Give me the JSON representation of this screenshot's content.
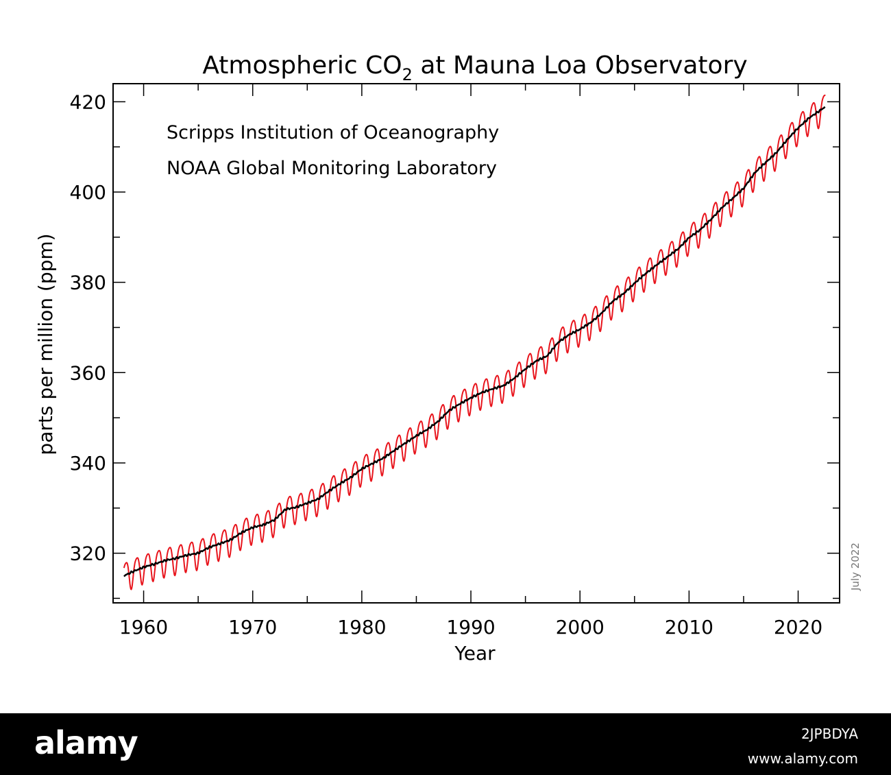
{
  "chart_data": {
    "type": "line",
    "title": "Atmospheric CO",
    "title_subscript": "2",
    "title_suffix": " at Mauna Loa Observatory",
    "xlabel": "Year",
    "ylabel": "parts per million (ppm)",
    "xlim": [
      1957.2,
      2023.8
    ],
    "ylim": [
      309,
      424
    ],
    "x_ticks": [
      1960,
      1970,
      1980,
      1990,
      2000,
      2010,
      2020
    ],
    "x_tick_labels": [
      "1960",
      "1970",
      "1980",
      "1990",
      "2000",
      "2010",
      "2020"
    ],
    "y_ticks": [
      320,
      340,
      360,
      380,
      400,
      420
    ],
    "y_tick_labels": [
      "320",
      "340",
      "360",
      "380",
      "400",
      "420"
    ],
    "grid": false,
    "annotations": [
      "Scripps Institution of Oceanography",
      "NOAA Global Monitoring Laboratory"
    ],
    "date_stamp": "July 2022",
    "colors": {
      "monthly": "#e8141c",
      "trend": "#000000"
    },
    "series": [
      {
        "key": "monthly",
        "x": [
          1958.2,
          1959,
          1960,
          1961,
          1962,
          1963,
          1964,
          1965,
          1966,
          1967,
          1968,
          1969,
          1970,
          1971,
          1972,
          1973,
          1974,
          1975,
          1976,
          1977,
          1978,
          1979,
          1980,
          1981,
          1982,
          1983,
          1984,
          1985,
          1986,
          1987,
          1988,
          1989,
          1990,
          1991,
          1992,
          1993,
          1994,
          1995,
          1996,
          1997,
          1998,
          1999,
          2000,
          2001,
          2002,
          2003,
          2004,
          2005,
          2006,
          2007,
          2008,
          2009,
          2010,
          2011,
          2012,
          2013,
          2014,
          2015,
          2016,
          2017,
          2018,
          2019,
          2020,
          2021,
          2022.5
        ],
        "y": [
          315.0,
          315.9,
          316.9,
          317.6,
          318.4,
          318.9,
          319.6,
          320.0,
          321.3,
          322.1,
          323.0,
          324.6,
          325.7,
          326.3,
          327.4,
          329.7,
          330.2,
          331.1,
          332.0,
          333.8,
          335.4,
          336.8,
          338.7,
          339.9,
          341.1,
          342.8,
          344.4,
          346.0,
          347.4,
          349.2,
          351.6,
          353.1,
          354.4,
          355.6,
          356.4,
          357.1,
          358.8,
          360.8,
          362.6,
          363.7,
          366.7,
          368.4,
          369.6,
          371.1,
          373.2,
          375.8,
          377.5,
          379.8,
          381.9,
          383.8,
          385.6,
          387.4,
          389.9,
          391.6,
          393.9,
          396.5,
          398.6,
          400.8,
          404.2,
          406.5,
          408.7,
          411.6,
          414.2,
          416.4,
          418.9
        ],
        "seasonal_amplitude": 3.2
      },
      {
        "key": "trend",
        "x": [
          1958.2,
          1959,
          1960,
          1961,
          1962,
          1963,
          1964,
          1965,
          1966,
          1967,
          1968,
          1969,
          1970,
          1971,
          1972,
          1973,
          1974,
          1975,
          1976,
          1977,
          1978,
          1979,
          1980,
          1981,
          1982,
          1983,
          1984,
          1985,
          1986,
          1987,
          1988,
          1989,
          1990,
          1991,
          1992,
          1993,
          1994,
          1995,
          1996,
          1997,
          1998,
          1999,
          2000,
          2001,
          2002,
          2003,
          2004,
          2005,
          2006,
          2007,
          2008,
          2009,
          2010,
          2011,
          2012,
          2013,
          2014,
          2015,
          2016,
          2017,
          2018,
          2019,
          2020,
          2021,
          2022.5
        ],
        "y": [
          315.0,
          315.9,
          316.9,
          317.6,
          318.4,
          318.9,
          319.6,
          320.0,
          321.3,
          322.1,
          323.0,
          324.6,
          325.7,
          326.3,
          327.4,
          329.7,
          330.2,
          331.1,
          332.0,
          333.8,
          335.4,
          336.8,
          338.7,
          339.9,
          341.1,
          342.8,
          344.4,
          346.0,
          347.4,
          349.2,
          351.6,
          353.1,
          354.4,
          355.6,
          356.4,
          357.1,
          358.8,
          360.8,
          362.6,
          363.7,
          366.7,
          368.4,
          369.6,
          371.1,
          373.2,
          375.8,
          377.5,
          379.8,
          381.9,
          383.8,
          385.6,
          387.4,
          389.9,
          391.6,
          393.9,
          396.5,
          398.6,
          400.8,
          404.2,
          406.5,
          408.7,
          411.6,
          414.2,
          416.4,
          418.9
        ]
      }
    ]
  },
  "footer": {
    "logo": "alamy",
    "image_id": "2JPBDYA",
    "url": "www.alamy.com"
  }
}
